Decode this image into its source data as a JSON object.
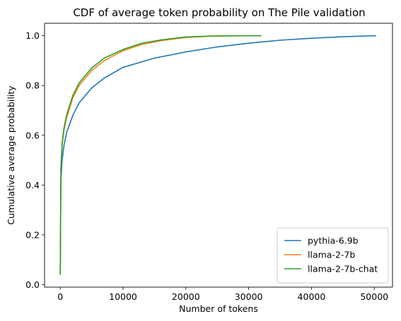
{
  "chart_data": {
    "type": "line",
    "title": "CDF of average token probability on The Pile validation",
    "xlabel": "Number of tokens",
    "ylabel": "Cumulative average probability",
    "xlim": [
      -2500,
      52900
    ],
    "ylim": [
      -0.01,
      1.05
    ],
    "xticks": [
      0,
      10000,
      20000,
      30000,
      40000,
      50000
    ],
    "yticks": [
      0.0,
      0.2,
      0.4,
      0.6,
      0.8,
      1.0
    ],
    "xtick_labels": [
      "0",
      "10000",
      "20000",
      "30000",
      "40000",
      "50000"
    ],
    "ytick_labels": [
      "0.0",
      "0.2",
      "0.4",
      "0.6",
      "0.8",
      "1.0"
    ],
    "grid": false,
    "legend_position": "lower-right",
    "series": [
      {
        "name": "pythia-6.9b",
        "color": "#1f77b4",
        "x": [
          0,
          100,
          300,
          600,
          1000,
          2000,
          3000,
          5000,
          7000,
          10000,
          15000,
          20000,
          25000,
          30000,
          35000,
          40000,
          45000,
          50280
        ],
        "y": [
          0.04,
          0.42,
          0.5,
          0.56,
          0.61,
          0.68,
          0.73,
          0.79,
          0.83,
          0.873,
          0.91,
          0.935,
          0.955,
          0.97,
          0.982,
          0.99,
          0.996,
          1.0
        ]
      },
      {
        "name": "llama-2-7b",
        "color": "#ff7f0e",
        "x": [
          0,
          100,
          300,
          600,
          1000,
          2000,
          3000,
          5000,
          7000,
          10000,
          13000,
          16000,
          20000,
          24000,
          28000,
          32000
        ],
        "y": [
          0.04,
          0.46,
          0.56,
          0.62,
          0.67,
          0.75,
          0.8,
          0.86,
          0.9,
          0.94,
          0.965,
          0.98,
          0.993,
          0.998,
          0.9995,
          1.0
        ]
      },
      {
        "name": "llama-2-7b-chat",
        "color": "#2ca02c",
        "x": [
          0,
          100,
          300,
          600,
          1000,
          2000,
          3000,
          5000,
          7000,
          10000,
          13000,
          16000,
          20000,
          24000,
          28000,
          32000
        ],
        "y": [
          0.04,
          0.47,
          0.57,
          0.63,
          0.68,
          0.76,
          0.81,
          0.87,
          0.91,
          0.945,
          0.97,
          0.983,
          0.995,
          0.999,
          0.9998,
          1.0
        ]
      }
    ]
  }
}
